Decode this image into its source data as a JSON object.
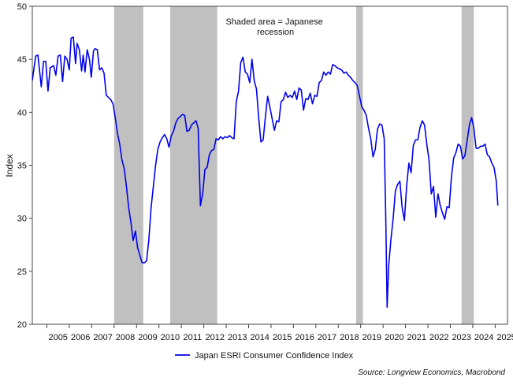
{
  "chart_data": {
    "type": "line",
    "ylabel": "Index",
    "ylim": [
      20,
      50
    ],
    "yticks": [
      20,
      25,
      30,
      35,
      40,
      45,
      50
    ],
    "xlim": [
      2004.35,
      2025.55
    ],
    "xtick_labels": [
      "2005",
      "2006",
      "2007",
      "2008",
      "2009",
      "2010",
      "2011",
      "2012",
      "2013",
      "2014",
      "2015",
      "2016",
      "2017",
      "2018",
      "2019",
      "2020",
      "2021",
      "2022",
      "2023",
      "2024",
      "2025"
    ],
    "grid": false,
    "legend_position": "bottom-center",
    "annotation": {
      "lines": [
        "Shaded area = Japanese",
        "recession"
      ],
      "x": 2015.2,
      "y": 48.3
    },
    "recession_color": "#c0c0c0",
    "recessions": [
      {
        "start": 2008.0,
        "end": 2009.3
      },
      {
        "start": 2010.5,
        "end": 2012.6
      },
      {
        "start": 2018.8,
        "end": 2019.1
      },
      {
        "start": 2023.5,
        "end": 2024.05
      }
    ],
    "series": [
      {
        "name": "Japan ESRI Consumer Confidence Index",
        "color": "#0000ee",
        "x": [
          2004.35,
          2004.5,
          2004.6,
          2004.75,
          2004.85,
          2004.95,
          2005.05,
          2005.15,
          2005.3,
          2005.4,
          2005.5,
          2005.6,
          2005.7,
          2005.8,
          2005.9,
          2006.0,
          2006.08,
          2006.18,
          2006.28,
          2006.35,
          2006.45,
          2006.55,
          2006.62,
          2006.7,
          2006.8,
          2006.9,
          2006.98,
          2007.08,
          2007.15,
          2007.25,
          2007.35,
          2007.45,
          2007.55,
          2007.65,
          2007.75,
          2007.85,
          2007.95,
          2008.05,
          2008.15,
          2008.25,
          2008.35,
          2008.45,
          2008.55,
          2008.65,
          2008.75,
          2008.85,
          2008.95,
          2009.05,
          2009.15,
          2009.25,
          2009.35,
          2009.45,
          2009.55,
          2009.65,
          2009.75,
          2009.85,
          2009.95,
          2010.05,
          2010.15,
          2010.25,
          2010.35,
          2010.45,
          2010.55,
          2010.65,
          2010.75,
          2010.85,
          2010.95,
          2011.05,
          2011.15,
          2011.25,
          2011.35,
          2011.45,
          2011.55,
          2011.65,
          2011.75,
          2011.85,
          2011.95,
          2012.05,
          2012.15,
          2012.25,
          2012.35,
          2012.45,
          2012.55,
          2012.65,
          2012.75,
          2012.85,
          2012.95,
          2013.05,
          2013.15,
          2013.25,
          2013.35,
          2013.45,
          2013.55,
          2013.65,
          2013.75,
          2013.85,
          2013.95,
          2014.05,
          2014.15,
          2014.25,
          2014.35,
          2014.45,
          2014.55,
          2014.65,
          2014.75,
          2014.85,
          2014.95,
          2015.05,
          2015.15,
          2015.25,
          2015.35,
          2015.45,
          2015.55,
          2015.65,
          2015.75,
          2015.85,
          2015.95,
          2016.05,
          2016.15,
          2016.25,
          2016.35,
          2016.45,
          2016.55,
          2016.65,
          2016.75,
          2016.85,
          2016.95,
          2017.05,
          2017.15,
          2017.25,
          2017.35,
          2017.45,
          2017.55,
          2017.65,
          2017.75,
          2017.85,
          2017.95,
          2018.05,
          2018.15,
          2018.25,
          2018.35,
          2018.45,
          2018.55,
          2018.65,
          2018.75,
          2018.85,
          2018.95,
          2019.05,
          2019.15,
          2019.25,
          2019.35,
          2019.45,
          2019.55,
          2019.65,
          2019.75,
          2019.85,
          2019.95,
          2020.05,
          2020.12,
          2020.18,
          2020.25,
          2020.35,
          2020.45,
          2020.55,
          2020.65,
          2020.75,
          2020.85,
          2020.95,
          2021.05,
          2021.15,
          2021.25,
          2021.35,
          2021.45,
          2021.55,
          2021.65,
          2021.75,
          2021.85,
          2021.95,
          2022.05,
          2022.15,
          2022.25,
          2022.35,
          2022.45,
          2022.55,
          2022.65,
          2022.75,
          2022.85,
          2022.95,
          2023.05,
          2023.15,
          2023.25,
          2023.35,
          2023.45,
          2023.55,
          2023.65,
          2023.75,
          2023.85,
          2023.95,
          2024.05,
          2024.15,
          2024.25,
          2024.35,
          2024.45,
          2024.55,
          2024.65,
          2024.75,
          2024.85,
          2024.95,
          2025.05,
          2025.12
        ],
        "y": [
          43.0,
          45.3,
          45.4,
          42.4,
          44.8,
          44.8,
          42.0,
          44.2,
          44.4,
          43.5,
          45.3,
          45.4,
          42.9,
          45.3,
          45.0,
          44.0,
          47.0,
          47.1,
          44.6,
          46.5,
          45.9,
          43.9,
          45.4,
          43.8,
          45.9,
          45.0,
          43.3,
          45.8,
          46.0,
          45.9,
          44.0,
          44.2,
          43.7,
          41.6,
          41.4,
          41.2,
          40.8,
          39.5,
          38.0,
          37.0,
          35.5,
          34.7,
          33.0,
          31.0,
          29.6,
          27.9,
          28.8,
          27.2,
          26.5,
          25.8,
          25.8,
          26.0,
          28.0,
          31.0,
          33.0,
          35.0,
          36.5,
          37.2,
          37.6,
          37.9,
          37.5,
          36.7,
          37.8,
          38.2,
          39.0,
          39.4,
          39.6,
          39.8,
          39.7,
          38.2,
          38.3,
          38.8,
          39.0,
          39.2,
          38.5,
          31.2,
          32.3,
          34.6,
          34.8,
          36.0,
          36.4,
          36.5,
          37.5,
          37.4,
          37.7,
          37.5,
          37.7,
          37.6,
          37.8,
          37.6,
          37.5,
          41.0,
          42.0,
          44.7,
          45.2,
          43.8,
          43.6,
          42.8,
          45.0,
          43.0,
          42.2,
          39.5,
          37.2,
          37.4,
          39.6,
          41.5,
          40.5,
          39.4,
          38.3,
          39.2,
          39.1,
          41.0,
          41.2,
          41.9,
          41.4,
          41.6,
          41.4,
          42.0,
          41.2,
          42.3,
          42.1,
          40.2,
          41.3,
          41.2,
          41.8,
          40.8,
          41.6,
          41.5,
          42.8,
          43.0,
          43.8,
          43.5,
          43.8,
          43.6,
          44.5,
          44.4,
          44.2,
          44.1,
          44.0,
          43.7,
          43.8,
          43.5,
          43.3,
          43.0,
          42.8,
          42.5,
          41.5,
          40.5,
          40.2,
          39.7,
          38.5,
          37.5,
          35.8,
          36.5,
          38.4,
          38.9,
          38.8,
          37.5,
          30.0,
          21.6,
          25.5,
          28.0,
          30.0,
          32.6,
          33.2,
          33.5,
          31.0,
          29.8,
          33.0,
          35.2,
          34.3,
          36.9,
          37.4,
          37.4,
          38.6,
          39.2,
          38.8,
          37.0,
          35.5,
          32.3,
          33.0,
          30.1,
          32.3,
          31.2,
          30.5,
          29.9,
          31.1,
          31.0,
          33.9,
          35.7,
          36.2,
          37.0,
          36.8,
          35.6,
          35.9,
          37.3,
          38.8,
          39.5,
          38.5,
          36.6,
          36.6,
          36.8,
          36.8,
          37.0,
          36.0,
          35.8,
          35.2,
          34.8,
          33.5,
          31.2
        ]
      }
    ],
    "source": "Source: Longview Economics, Macrobond"
  }
}
